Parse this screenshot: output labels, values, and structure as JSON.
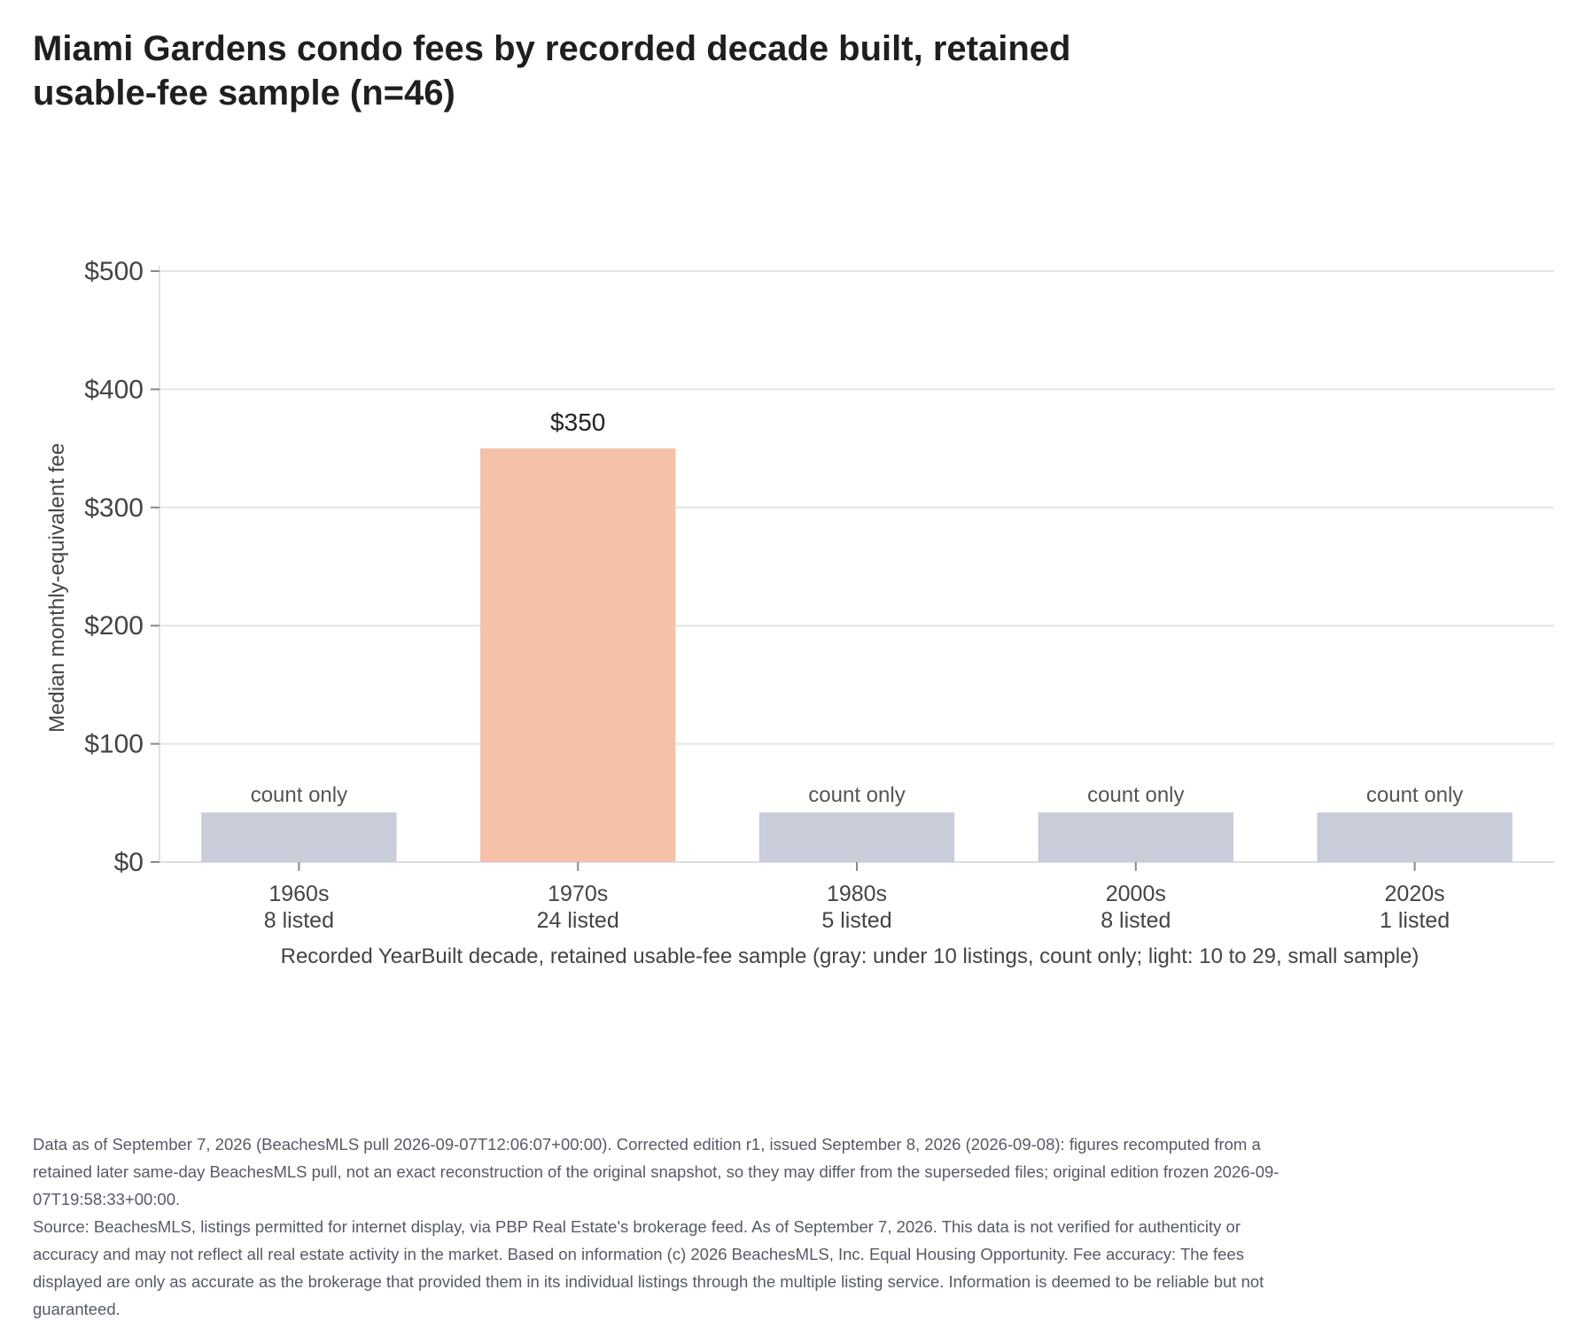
{
  "chart_data": {
    "type": "bar",
    "title": "Miami Gardens condo fees by recorded decade built, retained usable-fee sample (n=46)",
    "xlabel": "Recorded YearBuilt decade, retained usable-fee sample (gray: under 10 listings, count only; light: 10 to 29, small sample)",
    "ylabel": "Median monthly-equivalent fee",
    "ylim": [
      0,
      500
    ],
    "yticks": [
      0,
      100,
      200,
      300,
      400,
      500
    ],
    "ytick_labels": [
      "$0",
      "$100",
      "$200",
      "$300",
      "$400",
      "$500"
    ],
    "categories": [
      "1960s",
      "1970s",
      "1980s",
      "2000s",
      "2020s"
    ],
    "counts": [
      "8 listed",
      "24 listed",
      "5 listed",
      "8 listed",
      "1 listed"
    ],
    "values": [
      null,
      350,
      null,
      null,
      null
    ],
    "placeholder_value": 42,
    "data_labels": [
      "count only",
      "$350",
      "count only",
      "count only",
      "count only"
    ],
    "bar_colors": [
      "#c9ccd9",
      "#f5c1a9",
      "#c9ccd9",
      "#c9ccd9",
      "#c9ccd9"
    ],
    "grid": true,
    "legend": "none"
  },
  "notes": {
    "line1": "Data as of September 7, 2026 (BeachesMLS pull 2026-09-07T12:06:07+00:00). Corrected edition r1, issued September 8, 2026 (2026-09-08): figures recomputed from a retained later same-day BeachesMLS pull, not an exact reconstruction of the original snapshot, so they may differ from the superseded files; original edition frozen 2026-09-07T19:58:33+00:00.",
    "line2": "Source: BeachesMLS, listings permitted for internet display, via PBP Real Estate's brokerage feed. As of September 7, 2026. This data is not verified for authenticity or accuracy and may not reflect all real estate activity in the market. Based on information (c) 2026 BeachesMLS, Inc. Equal Housing Opportunity. Fee accuracy: The fees displayed are only as accurate as the brokerage that provided them in its individual listings through the multiple listing service. Information is deemed to be reliable but not guaranteed."
  }
}
